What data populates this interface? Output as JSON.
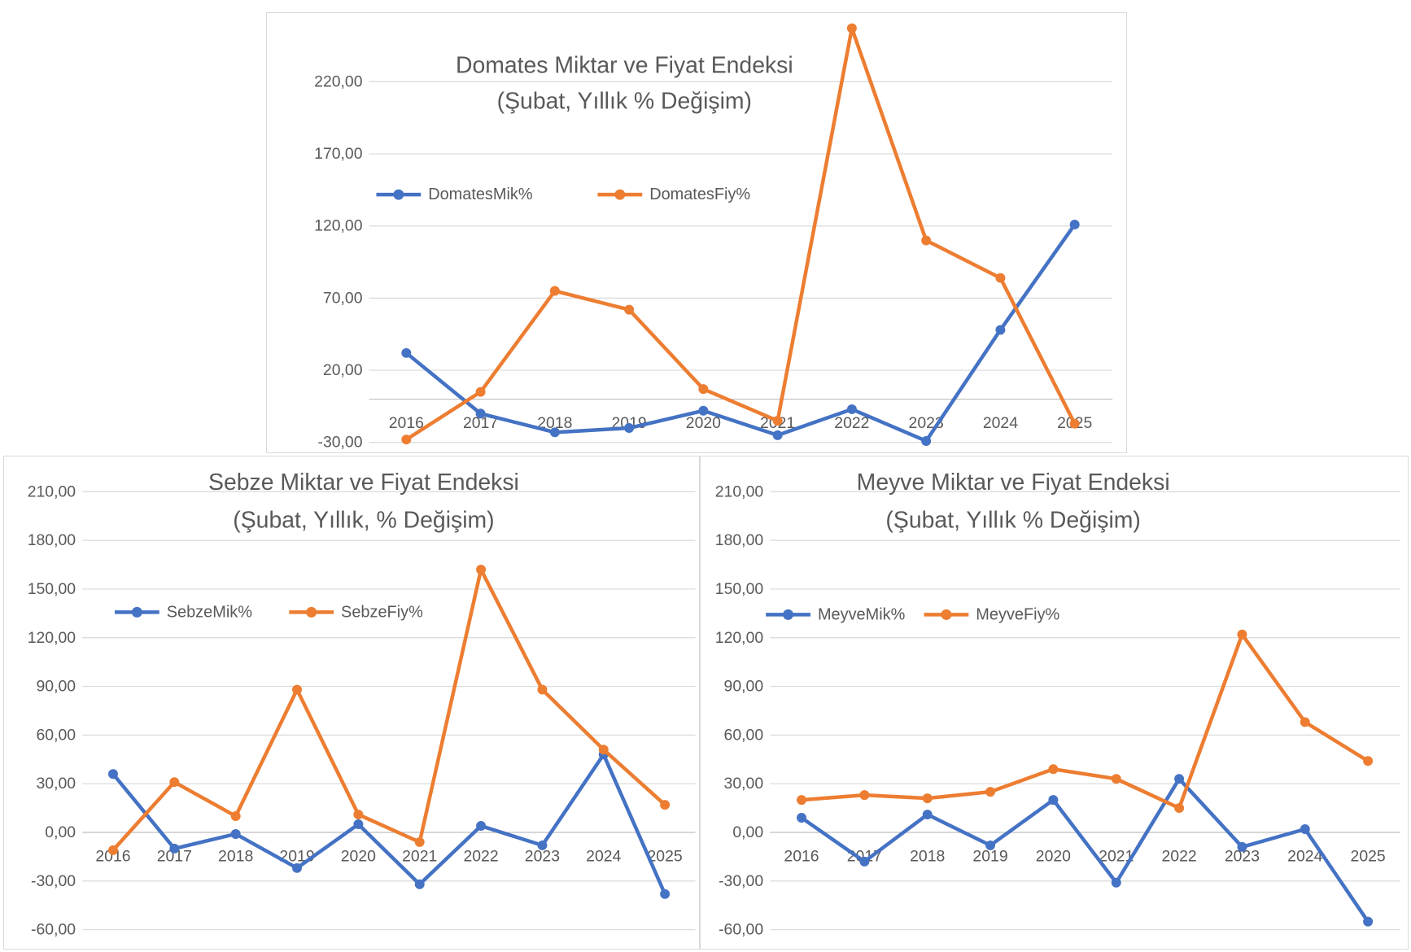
{
  "page": {
    "background": "#ffffff",
    "description": "Three Excel-style line charts of Turkish agricultural quantity and price index annual % change"
  },
  "colors": {
    "mik": "#4472C4",
    "fiy": "#ED7D31",
    "text": "#595959",
    "gridline": "#D9D9D9",
    "axis_line": "#BFBFBF",
    "chart_border": "#D9D9D9",
    "chart_bg": "#FFFFFF"
  },
  "chart_data": [
    {
      "type": "line",
      "id": "domates",
      "title": "Domates Miktar ve Fiyat Endeksi",
      "subtitle": "(Şubat, Yıllık % Değişim)",
      "categories": [
        "2016",
        "2017",
        "2018",
        "2019",
        "2020",
        "2021",
        "2022",
        "2023",
        "2024",
        "2025"
      ],
      "series": [
        {
          "name": "DomatesMik%",
          "color_key": "mik",
          "values": [
            32,
            -10,
            -23,
            -20,
            -8,
            -25,
            -7,
            -29,
            48,
            121
          ]
        },
        {
          "name": "DomatesFiy%",
          "color_key": "fiy",
          "values": [
            -28,
            5,
            75,
            62,
            7,
            -15,
            257,
            110,
            84,
            -17
          ]
        }
      ],
      "y_ticks": [
        220,
        170,
        120,
        70,
        20,
        -30
      ],
      "y_tick_labels": [
        "220,00",
        "170,00",
        "120,00",
        "70,00",
        "20,00",
        "-30,00"
      ],
      "ylim": [
        -36,
        265
      ],
      "grid": true,
      "legend_position": "inside-upper-left"
    },
    {
      "type": "line",
      "id": "sebze",
      "title": "Sebze Miktar ve Fiyat Endeksi",
      "subtitle": "(Şubat, Yıllık, % Değişim)",
      "categories": [
        "2016",
        "2017",
        "2018",
        "2019",
        "2020",
        "2021",
        "2022",
        "2023",
        "2024",
        "2025"
      ],
      "series": [
        {
          "name": "SebzeMik%",
          "color_key": "mik",
          "values": [
            36,
            -10,
            -1,
            -22,
            5,
            -32,
            4,
            -8,
            48,
            -38
          ]
        },
        {
          "name": "SebzeFiy%",
          "color_key": "fiy",
          "values": [
            -11,
            31,
            10,
            88,
            11,
            -6,
            162,
            88,
            51,
            17
          ]
        }
      ],
      "y_ticks": [
        210,
        180,
        150,
        120,
        90,
        60,
        30,
        0,
        -30,
        -60
      ],
      "y_tick_labels": [
        "210,00",
        "180,00",
        "150,00",
        "120,00",
        "90,00",
        "60,00",
        "30,00",
        "0,00",
        "-30,00",
        "-60,00"
      ],
      "ylim": [
        -71,
        232
      ],
      "grid": true,
      "legend_position": "inside-upper-left"
    },
    {
      "type": "line",
      "id": "meyve",
      "title": "Meyve Miktar ve Fiyat Endeksi",
      "subtitle": "(Şubat, Yıllık % Değişim)",
      "categories": [
        "2016",
        "2017",
        "2018",
        "2019",
        "2020",
        "2021",
        "2022",
        "2023",
        "2024",
        "2025"
      ],
      "series": [
        {
          "name": "MeyveMik%",
          "color_key": "mik",
          "values": [
            9,
            -18,
            11,
            -8,
            20,
            -31,
            33,
            -9,
            2,
            -55
          ]
        },
        {
          "name": "MeyveFiy%",
          "color_key": "fiy",
          "values": [
            20,
            23,
            21,
            25,
            39,
            33,
            15,
            122,
            68,
            44
          ]
        }
      ],
      "y_ticks": [
        210,
        180,
        150,
        120,
        90,
        60,
        30,
        0,
        -30,
        -60
      ],
      "y_tick_labels": [
        "210,00",
        "180,00",
        "150,00",
        "120,00",
        "90,00",
        "60,00",
        "30,00",
        "0,00",
        "-30,00",
        "-60,00"
      ],
      "ylim": [
        -71,
        232
      ],
      "grid": true,
      "legend_position": "inside-upper-left"
    }
  ]
}
